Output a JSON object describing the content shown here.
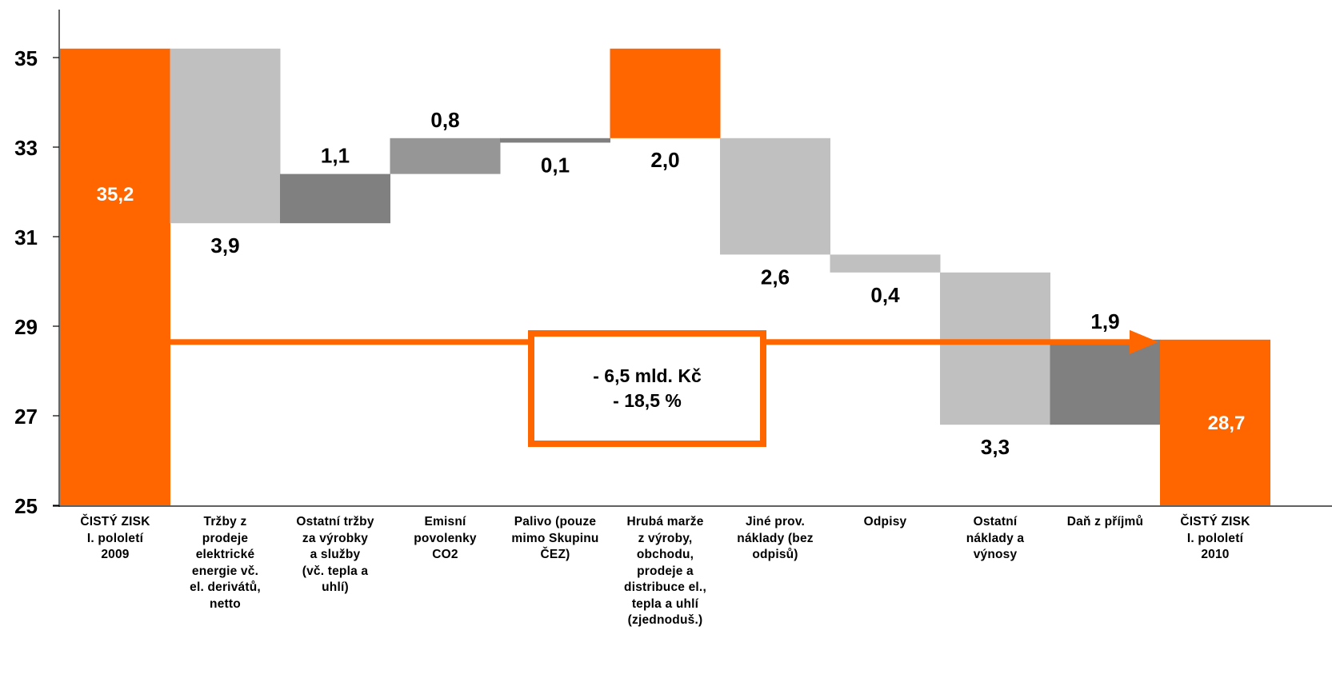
{
  "chart_data": {
    "type": "waterfall",
    "ylim": [
      25,
      36.1
    ],
    "yticks": [
      25,
      27,
      29,
      31,
      33,
      35
    ],
    "ytick_labels": [
      "25",
      "27",
      "29",
      "31",
      "33",
      "35"
    ],
    "categories": [
      "ČISTÝ ZISK I. pololetí 2009",
      "Tržby z prodeje elektrické energie vč. el. derivátů, netto",
      "Ostatní tržby za výrobky a služby (vč. tepla a uhlí)",
      "Emisní povolenky CO2",
      "Palivo (pouze mimo Skupinu ČEZ)",
      "Hrubá marže z výroby, obchodu, prodeje a distribuce el., tepla a uhlí (zjednoduš.)",
      "Jiné prov. náklady (bez odpisů)",
      "Odpisy",
      "Ostatní náklady a výnosy",
      "Daň z příjmů",
      "ČISTÝ ZISK I. pololetí 2010"
    ],
    "category_lines": [
      [
        "ČISTÝ ZISK",
        "I. pololetí",
        "2009"
      ],
      [
        "Tržby z",
        "prodeje",
        "elektrické",
        "energie vč.",
        "el. derivátů,",
        "netto"
      ],
      [
        "Ostatní tržby",
        "za výrobky",
        "a služby",
        "(vč. tepla a",
        "uhlí)"
      ],
      [
        "Emisní",
        "povolenky",
        "CO2"
      ],
      [
        "Palivo (pouze",
        "mimo Skupinu",
        "ČEZ)"
      ],
      [
        "Hrubá marže",
        "z výroby,",
        "obchodu,",
        "prodeje a",
        "distribuce el.,",
        "tepla a uhlí",
        "(zjednoduš.)"
      ],
      [
        "Jiné prov.",
        "náklady (bez",
        "odpisů)"
      ],
      [
        "Odpisy"
      ],
      [
        "Ostatní",
        "náklady a",
        "výnosy"
      ],
      [
        "Daň z příjmů"
      ],
      [
        "ČISTÝ ZISK",
        "I. pololetí",
        "2010"
      ]
    ],
    "bars": [
      {
        "kind": "total",
        "start": 25,
        "end": 35.2,
        "label": "35,2",
        "color": "#ff6600"
      },
      {
        "kind": "delta",
        "start": 35.2,
        "end": 31.3,
        "label": "3,9",
        "color": "#c0c0c0"
      },
      {
        "kind": "delta",
        "start": 31.3,
        "end": 32.4,
        "label": "1,1",
        "color": "#808080"
      },
      {
        "kind": "delta",
        "start": 32.4,
        "end": 33.2,
        "label": "0,8",
        "color": "#969696"
      },
      {
        "kind": "delta",
        "start": 33.2,
        "end": 33.1,
        "label": "0,1",
        "color": "#808080"
      },
      {
        "kind": "delta",
        "start": 33.2,
        "end": 35.2,
        "label": "2,0",
        "color": "#ff6600"
      },
      {
        "kind": "delta",
        "start": 33.2,
        "end": 30.6,
        "label": "2,6",
        "color": "#c0c0c0"
      },
      {
        "kind": "delta",
        "start": 30.6,
        "end": 30.2,
        "label": "0,4",
        "color": "#c0c0c0"
      },
      {
        "kind": "delta",
        "start": 30.2,
        "end": 26.8,
        "label": "3,3",
        "color": "#c0c0c0"
      },
      {
        "kind": "delta",
        "start": 26.8,
        "end": 28.7,
        "label": "1,9",
        "color": "#808080"
      },
      {
        "kind": "total",
        "start": 25,
        "end": 28.7,
        "label": "28,7",
        "color": "#ff6600"
      }
    ],
    "summary": [
      "- 6,5 mld. Kč",
      "- 18,5 %"
    ],
    "arrow_level": 28.7,
    "grid": false,
    "legend": "none"
  }
}
